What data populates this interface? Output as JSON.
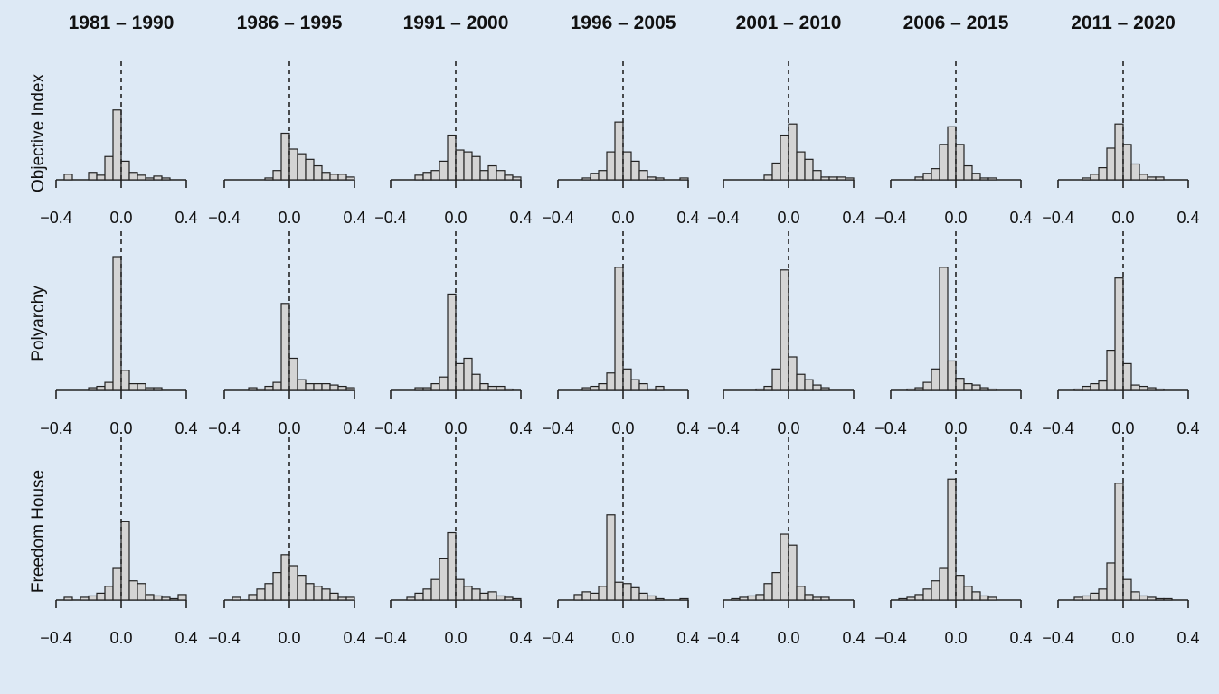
{
  "colors": {
    "background": "#dde9f5",
    "bar_fill": "#d4d4d4",
    "line": "#222222"
  },
  "chart_data": {
    "type": "bar",
    "subtype": "histogram-grid",
    "columns": [
      "1981 – 1990",
      "1986 – 1995",
      "1991 – 2000",
      "1996 – 2005",
      "2001 – 2010",
      "2006 – 2015",
      "2011 – 2020"
    ],
    "rows": [
      "Objective Index",
      "Polyarchy",
      "Freedom House"
    ],
    "xlim": [
      -0.4,
      0.4
    ],
    "x_ticks": [
      "−0.4",
      "0.0",
      "0.4"
    ],
    "bin_width": 0.05,
    "reference_line_x": 0.0,
    "reference_line_style": "dashed",
    "histograms": [
      [
        [
          0,
          0.06,
          0,
          0,
          0.08,
          0.05,
          0.25,
          0.75,
          0.2,
          0.08,
          0.05,
          0.02,
          0.04,
          0.02,
          0,
          0
        ],
        [
          0,
          0,
          0,
          0,
          0,
          0.02,
          0.1,
          0.5,
          0.33,
          0.28,
          0.22,
          0.15,
          0.08,
          0.06,
          0.06,
          0.03
        ],
        [
          0,
          0,
          0,
          0.05,
          0.08,
          0.1,
          0.2,
          0.48,
          0.32,
          0.3,
          0.25,
          0.1,
          0.15,
          0.1,
          0.05,
          0.03
        ],
        [
          0,
          0,
          0,
          0.02,
          0.07,
          0.1,
          0.3,
          0.62,
          0.3,
          0.2,
          0.1,
          0.03,
          0.02,
          0,
          0,
          0.02
        ],
        [
          0,
          0,
          0,
          0,
          0,
          0.05,
          0.18,
          0.48,
          0.6,
          0.3,
          0.22,
          0.1,
          0.03,
          0.03,
          0.03,
          0.02
        ],
        [
          0,
          0,
          0,
          0.03,
          0.07,
          0.12,
          0.38,
          0.57,
          0.38,
          0.15,
          0.07,
          0.02,
          0.02,
          0,
          0,
          0
        ],
        [
          0,
          0,
          0,
          0.02,
          0.06,
          0.13,
          0.34,
          0.6,
          0.38,
          0.17,
          0.06,
          0.03,
          0.03,
          0,
          0,
          0
        ]
      ],
      [
        [
          0,
          0,
          0,
          0,
          0.02,
          0.03,
          0.06,
          1.0,
          0.15,
          0.05,
          0.05,
          0.02,
          0.02,
          0,
          0,
          0
        ],
        [
          0,
          0,
          0,
          0.02,
          0.01,
          0.03,
          0.06,
          0.65,
          0.24,
          0.08,
          0.05,
          0.05,
          0.05,
          0.04,
          0.03,
          0.02
        ],
        [
          0,
          0,
          0,
          0.02,
          0.02,
          0.05,
          0.1,
          0.72,
          0.2,
          0.24,
          0.12,
          0.05,
          0.03,
          0.03,
          0.01,
          0
        ],
        [
          0,
          0,
          0,
          0.02,
          0.03,
          0.05,
          0.13,
          0.92,
          0.16,
          0.08,
          0.05,
          0.01,
          0.03,
          0,
          0,
          0
        ],
        [
          0,
          0,
          0,
          0,
          0.01,
          0.03,
          0.16,
          0.9,
          0.25,
          0.12,
          0.08,
          0.04,
          0.02,
          0,
          0,
          0
        ],
        [
          0,
          0,
          0.01,
          0.02,
          0.06,
          0.16,
          0.92,
          0.22,
          0.09,
          0.05,
          0.04,
          0.02,
          0.01,
          0,
          0,
          0
        ],
        [
          0,
          0,
          0.01,
          0.03,
          0.05,
          0.07,
          0.3,
          0.84,
          0.2,
          0.04,
          0.03,
          0.02,
          0.01,
          0,
          0,
          0
        ]
      ],
      [
        [
          0,
          0.02,
          0,
          0.02,
          0.03,
          0.05,
          0.1,
          0.23,
          0.57,
          0.14,
          0.12,
          0.04,
          0.03,
          0.02,
          0.01,
          0.04
        ],
        [
          0,
          0.02,
          0,
          0.04,
          0.08,
          0.12,
          0.2,
          0.33,
          0.25,
          0.18,
          0.12,
          0.1,
          0.08,
          0.05,
          0.02,
          0.02
        ],
        [
          0,
          0,
          0.02,
          0.05,
          0.08,
          0.15,
          0.3,
          0.49,
          0.15,
          0.1,
          0.08,
          0.05,
          0.06,
          0.03,
          0.02,
          0.01
        ],
        [
          0,
          0,
          0.04,
          0.06,
          0.05,
          0.1,
          0.62,
          0.13,
          0.12,
          0.09,
          0.05,
          0.03,
          0.01,
          0,
          0,
          0.01
        ],
        [
          0,
          0.01,
          0.02,
          0.03,
          0.04,
          0.12,
          0.2,
          0.48,
          0.4,
          0.1,
          0.04,
          0.02,
          0.02,
          0,
          0,
          0
        ],
        [
          0,
          0.01,
          0.02,
          0.04,
          0.08,
          0.14,
          0.23,
          0.88,
          0.18,
          0.1,
          0.06,
          0.03,
          0.02,
          0,
          0,
          0
        ],
        [
          0,
          0,
          0.02,
          0.03,
          0.05,
          0.08,
          0.27,
          0.85,
          0.15,
          0.06,
          0.03,
          0.02,
          0.01,
          0.01,
          0,
          0
        ]
      ]
    ]
  }
}
